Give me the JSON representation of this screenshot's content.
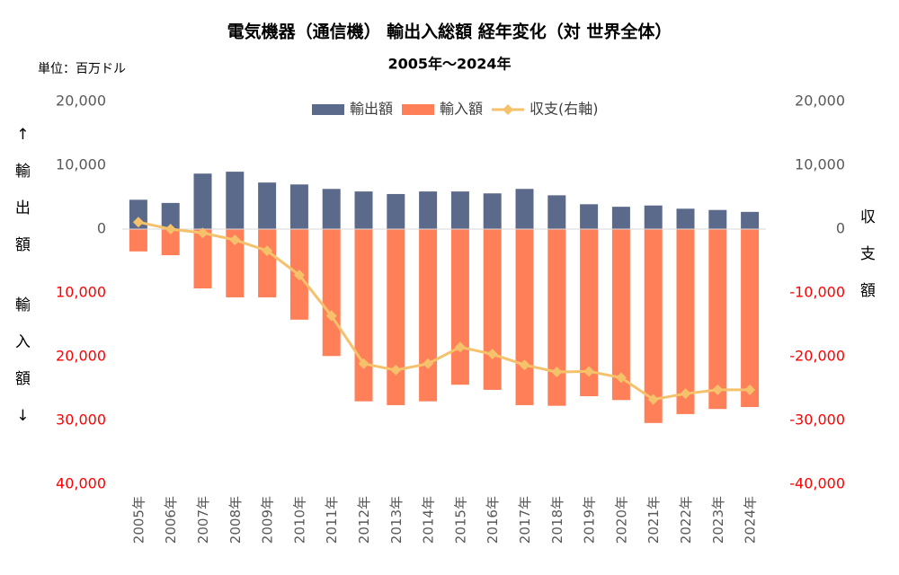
{
  "chart_data": {
    "type": "bar_line",
    "title": "電気機器（通信機） 輸出入総額 経年変化（対 世界全体）",
    "subtitle": "2005年～2024年",
    "unit_label": "単位：百万ドル",
    "y_label_top": "↑輸出額",
    "y_label_bottom": "輸入額↓",
    "y2_label": "収支額",
    "categories": [
      "2005年",
      "2006年",
      "2007年",
      "2008年",
      "2009年",
      "2010年",
      "2011年",
      "2012年",
      "2013年",
      "2014年",
      "2015年",
      "2016年",
      "2017年",
      "2018年",
      "2019年",
      "2020年",
      "2021年",
      "2022年",
      "2023年",
      "2024年"
    ],
    "series": [
      {
        "name": "輸出額",
        "color": "#5b6a8a",
        "kind": "bar",
        "values": [
          4600,
          4100,
          8700,
          9000,
          7300,
          7000,
          6300,
          5900,
          5500,
          5900,
          5900,
          5600,
          6300,
          5300,
          3900,
          3500,
          3700,
          3200,
          3000,
          2700
        ]
      },
      {
        "name": "輸入額",
        "color": "#ff7f59",
        "kind": "bar",
        "values": [
          -3500,
          -4100,
          -9300,
          -10700,
          -10700,
          -14200,
          -19900,
          -27000,
          -27600,
          -27000,
          -24400,
          -25200,
          -27600,
          -27700,
          -26200,
          -26800,
          -30400,
          -29000,
          -28200,
          -27900
        ]
      },
      {
        "name": "収支(右軸)",
        "color": "#f5c26b",
        "kind": "line",
        "axis": "y2",
        "values": [
          1100,
          0,
          -600,
          -1700,
          -3400,
          -7200,
          -13600,
          -21100,
          -22100,
          -21100,
          -18500,
          -19600,
          -21300,
          -22400,
          -22300,
          -23300,
          -26700,
          -25800,
          -25200,
          -25200
        ]
      }
    ],
    "ylim": [
      -40000,
      20000
    ],
    "yticks": [
      {
        "value": 20000,
        "label": "20,000"
      },
      {
        "value": 10000,
        "label": "10,000"
      },
      0,
      {
        "value": -10000,
        "label": "10,000"
      },
      {
        "value": -20000,
        "label": "20,000"
      },
      {
        "value": -30000,
        "label": "30,000"
      },
      {
        "value": -40000,
        "label": "40,000"
      }
    ],
    "y2lim": [
      -40000,
      20000
    ],
    "y2ticks": [
      {
        "value": 20000,
        "label": "20,000"
      },
      {
        "value": 10000,
        "label": "10,000"
      },
      0,
      {
        "value": -10000,
        "label": "-10,000"
      },
      {
        "value": -20000,
        "label": "-20,000"
      },
      {
        "value": -30000,
        "label": "-30,000"
      },
      {
        "value": -40000,
        "label": "-40,000"
      }
    ],
    "tick_color": "#595959",
    "negative_tick_color": "#ff0000",
    "legend": "top"
  }
}
